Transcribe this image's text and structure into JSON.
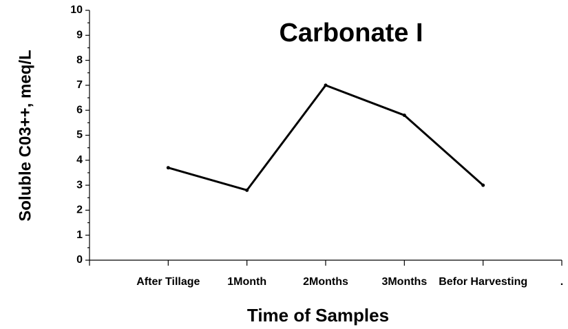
{
  "chart_data": {
    "type": "line",
    "title": "Carbonate I",
    "x_label": "Time of Samples",
    "y_label": "Soluble C03++, meq/L",
    "categories": [
      "After Tillage",
      "1Month",
      "2Months",
      "3Months",
      "Befor Harvesting",
      "."
    ],
    "series": [
      {
        "name": "Carbonate I",
        "color": "#000000",
        "values": [
          3.7,
          2.8,
          7.0,
          5.8,
          3.0,
          null
        ]
      }
    ],
    "ylim": [
      0,
      10
    ],
    "yticks": [
      0,
      1,
      2,
      3,
      4,
      5,
      6,
      7,
      8,
      9,
      10
    ],
    "grid": false
  }
}
